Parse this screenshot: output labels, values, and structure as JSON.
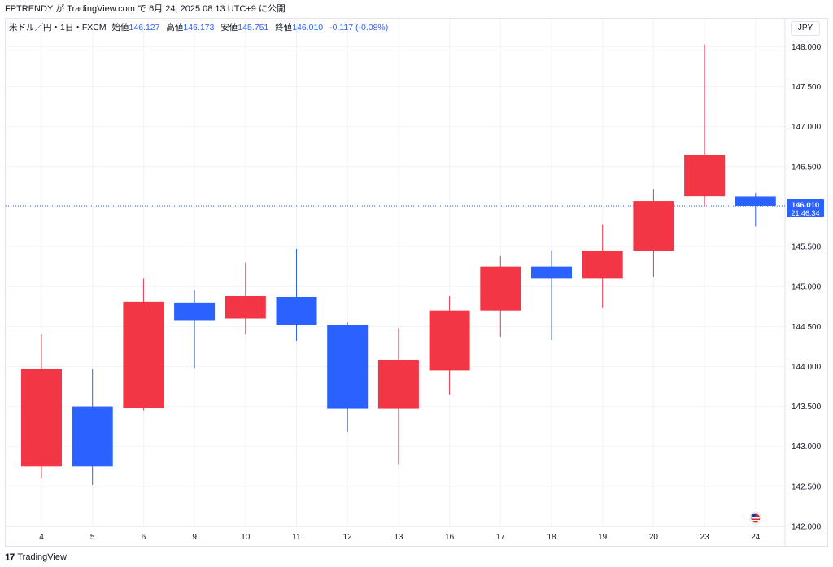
{
  "header": {
    "publish_line": "FPTRENDY が TradingView.com で 6月 24, 2025 08:13 UTC+9 に公開"
  },
  "legend": {
    "symbol": "米ドル／円・1日・FXCM",
    "open_label": "始値",
    "open": "146.127",
    "high_label": "高値",
    "high": "146.173",
    "low_label": "安値",
    "low": "145.751",
    "close_label": "終値",
    "close": "146.010",
    "change": "-0.117 (-0.08%)"
  },
  "currency": "JPY",
  "footer": {
    "brand": "TradingView",
    "logo_text": "17"
  },
  "chart_data": {
    "type": "candlestick",
    "title": "米ドル／円・1日・FXCM",
    "x": [
      "4",
      "5",
      "6",
      "9",
      "10",
      "11",
      "12",
      "13",
      "16",
      "17",
      "18",
      "19",
      "20",
      "23",
      "24"
    ],
    "open": [
      142.75,
      143.5,
      143.48,
      144.8,
      144.6,
      144.87,
      144.52,
      143.47,
      143.95,
      144.7,
      145.25,
      145.1,
      145.45,
      146.13,
      146.127
    ],
    "high": [
      144.4,
      143.97,
      145.1,
      144.95,
      145.3,
      145.47,
      144.55,
      144.48,
      144.88,
      145.38,
      145.45,
      145.78,
      146.22,
      148.03,
      146.173
    ],
    "low": [
      142.6,
      142.52,
      143.45,
      143.98,
      144.4,
      144.32,
      143.18,
      142.78,
      143.65,
      144.37,
      144.33,
      144.73,
      145.12,
      146.0,
      145.751
    ],
    "close": [
      143.97,
      142.75,
      144.81,
      144.58,
      144.88,
      144.52,
      143.47,
      144.08,
      144.7,
      145.25,
      145.1,
      145.45,
      146.07,
      146.65,
      146.01
    ],
    "y_ticks": [
      "148.000",
      "147.500",
      "147.000",
      "146.500",
      "146.000",
      "145.500",
      "145.000",
      "144.500",
      "144.000",
      "143.500",
      "143.000",
      "142.500",
      "142.000"
    ],
    "ylim": [
      142.0,
      148.35
    ],
    "last_price": {
      "label": "146.010",
      "countdown": "21:46:34",
      "value": 146.01
    },
    "grid": true,
    "colors": {
      "up": "#f23645",
      "down": "#2962ff",
      "grid": "#f0f3fa",
      "last_price_line": "#2962ff"
    }
  }
}
